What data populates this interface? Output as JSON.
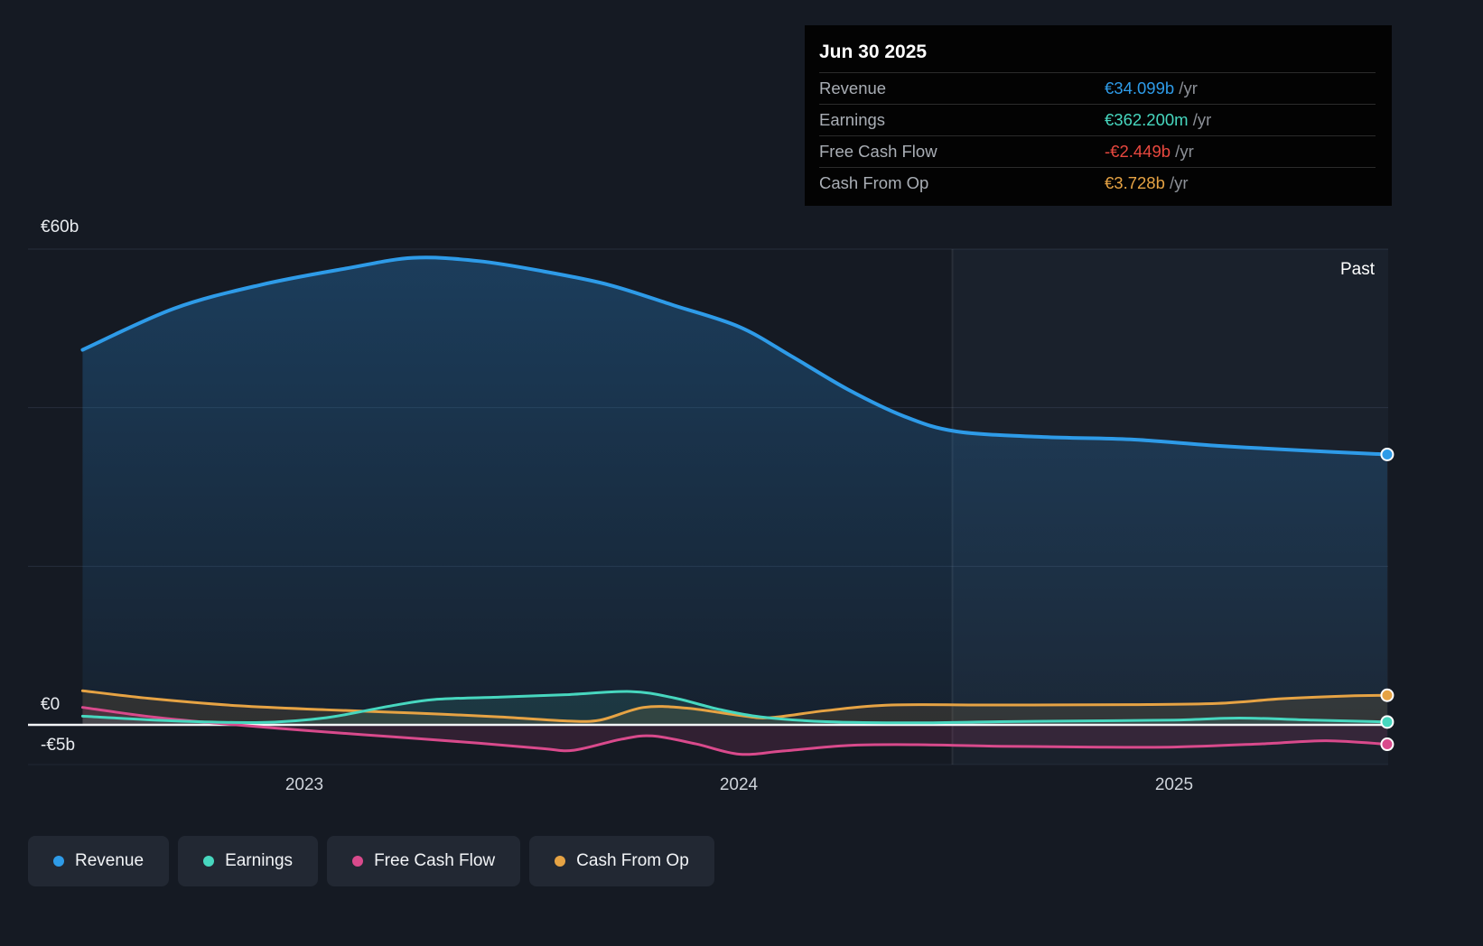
{
  "tooltip": {
    "date": "Jun 30 2025",
    "rows": [
      {
        "label": "Revenue",
        "value": "€34.099b",
        "suffix": " /yr",
        "color": "#2e9be8"
      },
      {
        "label": "Earnings",
        "value": "€362.200m",
        "suffix": " /yr",
        "color": "#47d7bf"
      },
      {
        "label": "Free Cash Flow",
        "value": "-€2.449b",
        "suffix": " /yr",
        "color": "#e8483f"
      },
      {
        "label": "Cash From Op",
        "value": "€3.728b",
        "suffix": " /yr",
        "color": "#e6a344"
      }
    ]
  },
  "axis": {
    "y_top_label": "€60b",
    "y_zero_label": "€0",
    "y_neg_label": "-€5b",
    "x_labels": [
      "2023",
      "2024",
      "2025"
    ],
    "past_label": "Past"
  },
  "legend": [
    {
      "label": "Revenue",
      "color": "#2e9be8"
    },
    {
      "label": "Earnings",
      "color": "#47d7bf"
    },
    {
      "label": "Free Cash Flow",
      "color": "#d94a8c"
    },
    {
      "label": "Cash From Op",
      "color": "#e6a344"
    }
  ],
  "chart_data": {
    "type": "area",
    "x_unit": "decimal_year",
    "x_range": [
      2022.49,
      2025.49
    ],
    "ylim_billions": [
      -5,
      60
    ],
    "gridlines_b": [
      60,
      40,
      20,
      0
    ],
    "divider_x": 2024.49,
    "grid": "horizontal-only",
    "legend_position": "bottom-left",
    "series": [
      {
        "name": "Revenue",
        "color": "#2e9be8",
        "width": 4,
        "fill": "gradient",
        "points": [
          [
            2022.49,
            47.3
          ],
          [
            2022.7,
            52.5
          ],
          [
            2022.9,
            55.5
          ],
          [
            2023.1,
            57.6
          ],
          [
            2023.25,
            58.9
          ],
          [
            2023.4,
            58.5
          ],
          [
            2023.55,
            57.2
          ],
          [
            2023.7,
            55.5
          ],
          [
            2023.85,
            52.9
          ],
          [
            2024.0,
            50.2
          ],
          [
            2024.12,
            46.5
          ],
          [
            2024.25,
            42.3
          ],
          [
            2024.38,
            38.9
          ],
          [
            2024.5,
            37.0
          ],
          [
            2024.7,
            36.3
          ],
          [
            2024.9,
            36.0
          ],
          [
            2025.1,
            35.2
          ],
          [
            2025.3,
            34.6
          ],
          [
            2025.49,
            34.1
          ]
        ]
      },
      {
        "name": "Cash From Op",
        "color": "#e6a344",
        "width": 3,
        "fill": "flat",
        "fill_opacity": 0.12,
        "points": [
          [
            2022.49,
            4.3
          ],
          [
            2022.65,
            3.3
          ],
          [
            2022.85,
            2.4
          ],
          [
            2023.05,
            1.9
          ],
          [
            2023.25,
            1.5
          ],
          [
            2023.45,
            1.0
          ],
          [
            2023.6,
            0.5
          ],
          [
            2023.68,
            0.6
          ],
          [
            2023.78,
            2.2
          ],
          [
            2023.88,
            2.1
          ],
          [
            2024.0,
            1.2
          ],
          [
            2024.07,
            0.9
          ],
          [
            2024.2,
            1.8
          ],
          [
            2024.35,
            2.5
          ],
          [
            2024.6,
            2.5
          ],
          [
            2024.9,
            2.55
          ],
          [
            2025.1,
            2.7
          ],
          [
            2025.25,
            3.3
          ],
          [
            2025.4,
            3.65
          ],
          [
            2025.49,
            3.728
          ]
        ]
      },
      {
        "name": "Free Cash Flow",
        "color": "#d94a8c",
        "width": 3,
        "fill": "flat",
        "fill_opacity": 0.14,
        "points": [
          [
            2022.49,
            2.2
          ],
          [
            2022.65,
            1.0
          ],
          [
            2022.8,
            0.2
          ],
          [
            2023.0,
            -0.7
          ],
          [
            2023.2,
            -1.5
          ],
          [
            2023.4,
            -2.3
          ],
          [
            2023.55,
            -3.0
          ],
          [
            2023.62,
            -3.2
          ],
          [
            2023.73,
            -1.8
          ],
          [
            2023.8,
            -1.4
          ],
          [
            2023.9,
            -2.4
          ],
          [
            2024.0,
            -3.7
          ],
          [
            2024.1,
            -3.3
          ],
          [
            2024.25,
            -2.6
          ],
          [
            2024.4,
            -2.5
          ],
          [
            2024.6,
            -2.7
          ],
          [
            2024.8,
            -2.8
          ],
          [
            2025.0,
            -2.8
          ],
          [
            2025.2,
            -2.4
          ],
          [
            2025.35,
            -2.0
          ],
          [
            2025.49,
            -2.449
          ]
        ]
      },
      {
        "name": "Earnings",
        "color": "#47d7bf",
        "width": 3,
        "fill": "flat",
        "fill_opacity": 0.12,
        "points": [
          [
            2022.49,
            1.1
          ],
          [
            2022.7,
            0.5
          ],
          [
            2022.9,
            0.3
          ],
          [
            2023.05,
            0.9
          ],
          [
            2023.2,
            2.4
          ],
          [
            2023.3,
            3.2
          ],
          [
            2023.45,
            3.5
          ],
          [
            2023.6,
            3.8
          ],
          [
            2023.75,
            4.2
          ],
          [
            2023.85,
            3.4
          ],
          [
            2023.95,
            2.0
          ],
          [
            2024.05,
            1.0
          ],
          [
            2024.2,
            0.4
          ],
          [
            2024.4,
            0.25
          ],
          [
            2024.6,
            0.4
          ],
          [
            2024.8,
            0.5
          ],
          [
            2025.0,
            0.6
          ],
          [
            2025.15,
            0.85
          ],
          [
            2025.32,
            0.6
          ],
          [
            2025.49,
            0.362
          ]
        ]
      }
    ]
  }
}
